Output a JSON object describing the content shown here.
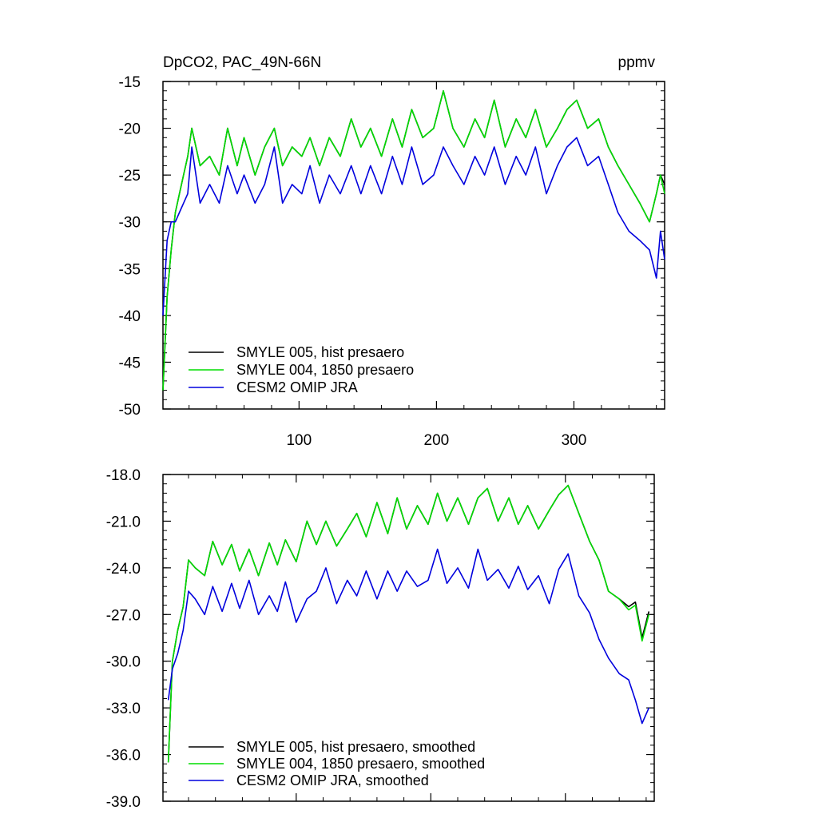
{
  "figure": {
    "title": "DpCO2, PAC_49N-66N",
    "units": "ppmv"
  },
  "colors": {
    "smyle005": "#000000",
    "smyle004": "#00dd00",
    "cesm2": "#0000dd",
    "axis": "#000000"
  },
  "chart_data": [
    {
      "type": "line",
      "panel": "top",
      "title": "DpCO2, PAC_49N-66N",
      "units_label": "ppmv",
      "xlim": [
        1,
        366
      ],
      "ylim": [
        -50,
        -15
      ],
      "x_ticks": [
        100,
        200,
        300
      ],
      "x_tick_labels": [
        "100",
        "200",
        "300"
      ],
      "y_ticks": [
        -15,
        -20,
        -25,
        -30,
        -35,
        -40,
        -45,
        -50
      ],
      "y_tick_labels": [
        "-15",
        "-20",
        "-25",
        "-30",
        "-35",
        "-40",
        "-45",
        "-50"
      ],
      "legend_position": "bottom-left",
      "series": [
        {
          "name": "SMYLE 005, hist presaero",
          "color_key": "smyle005",
          "x": [
            1,
            4,
            7,
            10,
            13,
            16,
            19,
            22,
            28,
            35,
            42,
            48,
            55,
            60,
            68,
            75,
            82,
            88,
            95,
            102,
            108,
            115,
            122,
            130,
            138,
            145,
            152,
            160,
            168,
            175,
            182,
            190,
            198,
            205,
            212,
            220,
            228,
            235,
            242,
            250,
            258,
            265,
            272,
            280,
            288,
            295,
            302,
            310,
            318,
            325,
            332,
            340,
            348,
            355,
            360,
            363,
            366
          ],
          "y": [
            -48,
            -38,
            -33,
            -29,
            -27,
            -25,
            -23,
            -20,
            -24,
            -23,
            -25,
            -20,
            -24,
            -21,
            -25,
            -22,
            -20,
            -24,
            -22,
            -23,
            -21,
            -24,
            -21,
            -23,
            -19,
            -22,
            -20,
            -23,
            -19,
            -22,
            -18,
            -21,
            -20,
            -16,
            -20,
            -22,
            -19,
            -21,
            -17,
            -22,
            -19,
            -21,
            -18,
            -22,
            -20,
            -18,
            -17,
            -20,
            -19,
            -22,
            -24,
            -26,
            -28,
            -30,
            -27,
            -25,
            -26
          ]
        },
        {
          "name": "SMYLE 004, 1850 presaero",
          "color_key": "smyle004",
          "x": [
            1,
            4,
            7,
            10,
            13,
            16,
            19,
            22,
            28,
            35,
            42,
            48,
            55,
            60,
            68,
            75,
            82,
            88,
            95,
            102,
            108,
            115,
            122,
            130,
            138,
            145,
            152,
            160,
            168,
            175,
            182,
            190,
            198,
            205,
            212,
            220,
            228,
            235,
            242,
            250,
            258,
            265,
            272,
            280,
            288,
            295,
            302,
            310,
            318,
            325,
            332,
            340,
            348,
            355,
            360,
            363,
            366
          ],
          "y": [
            -48,
            -38,
            -33,
            -29,
            -27,
            -25,
            -23,
            -20,
            -24,
            -23,
            -25,
            -20,
            -24,
            -21,
            -25,
            -22,
            -20,
            -24,
            -22,
            -23,
            -21,
            -24,
            -21,
            -23,
            -19,
            -22,
            -20,
            -23,
            -19,
            -22,
            -18,
            -21,
            -20,
            -16,
            -20,
            -22,
            -19,
            -21,
            -17,
            -22,
            -19,
            -21,
            -18,
            -22,
            -20,
            -18,
            -17,
            -20,
            -19,
            -22,
            -24,
            -26,
            -28,
            -30,
            -27,
            -25,
            -27
          ]
        },
        {
          "name": "CESM2 OMIP JRA",
          "color_key": "cesm2",
          "x": [
            1,
            4,
            7,
            10,
            13,
            16,
            19,
            22,
            28,
            35,
            42,
            48,
            55,
            60,
            68,
            75,
            82,
            88,
            95,
            102,
            108,
            115,
            122,
            130,
            138,
            145,
            152,
            160,
            168,
            175,
            182,
            190,
            198,
            205,
            212,
            220,
            228,
            235,
            242,
            250,
            258,
            265,
            272,
            280,
            288,
            295,
            302,
            310,
            318,
            325,
            332,
            340,
            348,
            355,
            360,
            363,
            366
          ],
          "y": [
            -40,
            -32,
            -30,
            -30,
            -29,
            -28,
            -27,
            -22,
            -28,
            -26,
            -28,
            -24,
            -27,
            -25,
            -28,
            -26,
            -22,
            -28,
            -26,
            -27,
            -24,
            -28,
            -25,
            -27,
            -24,
            -27,
            -24,
            -27,
            -23,
            -26,
            -22,
            -26,
            -25,
            -22,
            -24,
            -26,
            -23,
            -25,
            -22,
            -26,
            -23,
            -25,
            -22,
            -27,
            -24,
            -22,
            -21,
            -24,
            -23,
            -26,
            -29,
            -31,
            -32,
            -33,
            -36,
            -31,
            -34
          ]
        }
      ]
    },
    {
      "type": "line",
      "panel": "bottom",
      "xlim": [
        1,
        366
      ],
      "ylim": [
        -39,
        -18
      ],
      "x_ticks": [
        100,
        200,
        300
      ],
      "y_ticks": [
        -18,
        -21,
        -24,
        -27,
        -30,
        -33,
        -36,
        -39
      ],
      "y_tick_labels": [
        "-18.0",
        "-21.0",
        "-24.0",
        "-27.0",
        "-30.0",
        "-33.0",
        "-36.0",
        "-39.0"
      ],
      "legend_position": "bottom-left",
      "series": [
        {
          "name": "SMYLE 005, hist presaero, smoothed",
          "color_key": "smyle005",
          "x": [
            5,
            8,
            12,
            16,
            20,
            25,
            32,
            38,
            45,
            52,
            58,
            65,
            72,
            80,
            86,
            92,
            100,
            108,
            115,
            122,
            130,
            138,
            145,
            152,
            160,
            168,
            175,
            182,
            190,
            198,
            205,
            212,
            220,
            228,
            235,
            242,
            250,
            258,
            265,
            272,
            280,
            288,
            295,
            302,
            310,
            318,
            325,
            332,
            340,
            347,
            352,
            357,
            362
          ],
          "y": [
            -36.5,
            -30,
            -28,
            -26.5,
            -23.5,
            -24,
            -24.5,
            -22.3,
            -23.8,
            -22.5,
            -24.2,
            -22.8,
            -24.5,
            -22.4,
            -23.8,
            -22.2,
            -23.6,
            -21,
            -22.5,
            -21,
            -22.6,
            -21.5,
            -20.5,
            -22,
            -19.8,
            -21.8,
            -19.5,
            -21.5,
            -20,
            -21.2,
            -19.2,
            -21,
            -19.5,
            -21.2,
            -19.5,
            -18.9,
            -21,
            -19.5,
            -21.2,
            -20,
            -21.5,
            -20.3,
            -19.3,
            -18.7,
            -20.5,
            -22.3,
            -23.5,
            -25.5,
            -26,
            -26.5,
            -26.2,
            -28.5,
            -26.8
          ]
        },
        {
          "name": "SMYLE 004, 1850 presaero, smoothed",
          "color_key": "smyle004",
          "x": [
            5,
            8,
            12,
            16,
            20,
            25,
            32,
            38,
            45,
            52,
            58,
            65,
            72,
            80,
            86,
            92,
            100,
            108,
            115,
            122,
            130,
            138,
            145,
            152,
            160,
            168,
            175,
            182,
            190,
            198,
            205,
            212,
            220,
            228,
            235,
            242,
            250,
            258,
            265,
            272,
            280,
            288,
            295,
            302,
            310,
            318,
            325,
            332,
            340,
            347,
            352,
            357,
            362
          ],
          "y": [
            -36.5,
            -30,
            -28,
            -26.5,
            -23.5,
            -24,
            -24.5,
            -22.3,
            -23.8,
            -22.5,
            -24.2,
            -22.8,
            -24.5,
            -22.4,
            -23.8,
            -22.2,
            -23.6,
            -21,
            -22.5,
            -21,
            -22.6,
            -21.5,
            -20.5,
            -22,
            -19.8,
            -21.8,
            -19.5,
            -21.5,
            -20,
            -21.2,
            -19.2,
            -21,
            -19.5,
            -21.2,
            -19.5,
            -18.9,
            -21,
            -19.5,
            -21.2,
            -20,
            -21.5,
            -20.3,
            -19.3,
            -18.7,
            -20.5,
            -22.3,
            -23.5,
            -25.5,
            -26,
            -26.7,
            -26.4,
            -28.7,
            -27
          ]
        },
        {
          "name": "CESM2 OMIP JRA, smoothed",
          "color_key": "cesm2",
          "x": [
            5,
            8,
            12,
            16,
            20,
            25,
            32,
            38,
            45,
            52,
            58,
            65,
            72,
            80,
            86,
            92,
            100,
            108,
            115,
            122,
            130,
            138,
            145,
            152,
            160,
            168,
            175,
            182,
            190,
            198,
            205,
            212,
            220,
            228,
            235,
            242,
            250,
            258,
            265,
            272,
            280,
            288,
            295,
            302,
            310,
            318,
            325,
            332,
            340,
            347,
            352,
            357,
            362
          ],
          "y": [
            -32.5,
            -30.5,
            -29.5,
            -28,
            -25.5,
            -26,
            -27,
            -25.2,
            -26.8,
            -25,
            -26.6,
            -24.8,
            -27,
            -25.8,
            -26.8,
            -24.9,
            -27.5,
            -26,
            -25.5,
            -24,
            -26.3,
            -24.8,
            -25.8,
            -24.2,
            -26,
            -24.2,
            -25.5,
            -24.2,
            -25.2,
            -24.8,
            -22.8,
            -25,
            -24,
            -25.3,
            -22.8,
            -24.8,
            -24.1,
            -25.3,
            -23.9,
            -25.4,
            -24.5,
            -26.3,
            -24.1,
            -23.1,
            -25.8,
            -26.9,
            -28.6,
            -29.8,
            -30.8,
            -31.2,
            -32.5,
            -34,
            -33
          ]
        }
      ]
    }
  ]
}
